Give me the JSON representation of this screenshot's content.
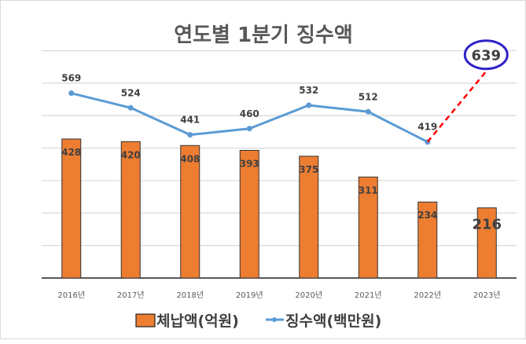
{
  "chart_data": {
    "type": "bar",
    "title": "연도별 1분기 징수액",
    "categories": [
      "2016년",
      "2017년",
      "2018년",
      "2019년",
      "2020년",
      "2021년",
      "2022년",
      "2023년"
    ],
    "ylim": [
      0,
      700
    ],
    "grid": true,
    "legend_position": "bottom",
    "series": [
      {
        "name": "체납액(억원)",
        "type": "bar",
        "color": "#ED7D31",
        "values": [
          428,
          420,
          408,
          393,
          375,
          311,
          234,
          216
        ]
      },
      {
        "name": "징수액(백만원)",
        "type": "line",
        "color": "#5B9BD5",
        "values": [
          569,
          524,
          441,
          460,
          532,
          512,
          419,
          null
        ]
      }
    ],
    "annotations": [
      {
        "type": "projection",
        "category": "2023년",
        "value": 639,
        "label": "639",
        "from_category": "2022년",
        "line_color": "#FF0000",
        "circle_color": "#2E22C8"
      }
    ]
  }
}
